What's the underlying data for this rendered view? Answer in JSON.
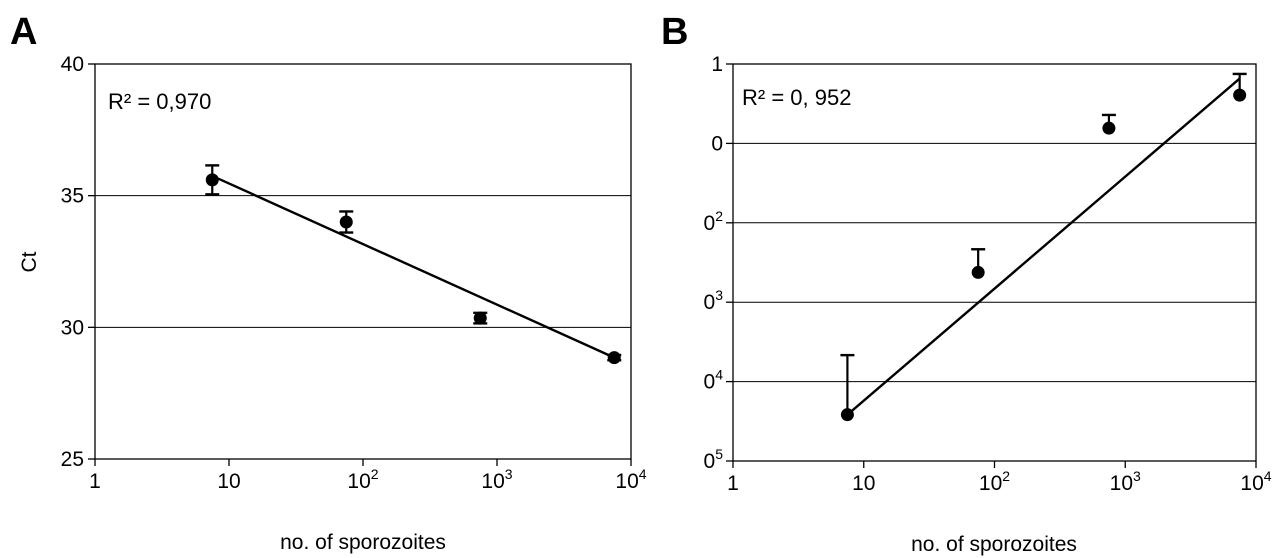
{
  "chart_data": [
    {
      "type": "scatter",
      "panel_label": "A",
      "annotation": "R² = 0,970",
      "xlabel": "no. of sporozoites",
      "ylabel": "Ct",
      "x_scale": "log",
      "xlim": [
        1,
        10000
      ],
      "ylim": [
        25,
        40
      ],
      "x_tick_labels": [
        {
          "base": "1",
          "sup": ""
        },
        {
          "base": "10",
          "sup": ""
        },
        {
          "base": "10",
          "sup": "2"
        },
        {
          "base": "10",
          "sup": "3"
        },
        {
          "base": "10",
          "sup": "4"
        }
      ],
      "y_tick_labels": [
        "40",
        "35",
        "30",
        "25"
      ],
      "grid": "horizontal",
      "points": [
        {
          "x": 7.5,
          "y": 35.6,
          "err_up": 0.55,
          "err_down": 0.55
        },
        {
          "x": 75,
          "y": 34.0,
          "err_up": 0.4,
          "err_down": 0.4
        },
        {
          "x": 750,
          "y": 30.35,
          "err_up": 0.2,
          "err_down": 0.2
        },
        {
          "x": 7500,
          "y": 28.85,
          "err_up": 0.1,
          "err_down": 0.1
        }
      ],
      "trendline": {
        "x": [
          7.5,
          7500
        ],
        "y": [
          35.75,
          28.85
        ]
      }
    },
    {
      "type": "scatter",
      "panel_label": "B",
      "annotation": "R² = 0, 952",
      "xlabel": "no. of sporozoites",
      "ylabel": "",
      "x_scale": "log",
      "xlim": [
        1,
        10000
      ],
      "ylim": [
        -5,
        1
      ],
      "x_tick_labels": [
        {
          "base": "1",
          "sup": ""
        },
        {
          "base": "10",
          "sup": ""
        },
        {
          "base": "10",
          "sup": "2"
        },
        {
          "base": "10",
          "sup": "3"
        },
        {
          "base": "10",
          "sup": "4"
        }
      ],
      "y_tick_labels": [
        {
          "base": "1",
          "sup": ""
        },
        {
          "base": "0",
          "sup": ""
        },
        {
          "base": "0",
          "sup": "2"
        },
        {
          "base": "0",
          "sup": "3"
        },
        {
          "base": "0",
          "sup": "4"
        },
        {
          "base": "0",
          "sup": "5"
        }
      ],
      "grid": "horizontal",
      "points": [
        {
          "x": 7.5,
          "y": -4.3,
          "err_up": 0.9,
          "err_down": 0
        },
        {
          "x": 75,
          "y": -2.15,
          "err_up": 0.35,
          "err_down": 0
        },
        {
          "x": 750,
          "y": 0.03,
          "err_up": 0.2,
          "err_down": 0
        },
        {
          "x": 7500,
          "y": 0.53,
          "err_up": 0.32,
          "err_down": 0
        }
      ],
      "trendline": {
        "x": [
          7.5,
          7500
        ],
        "y": [
          -4.3,
          0.78
        ]
      }
    }
  ]
}
